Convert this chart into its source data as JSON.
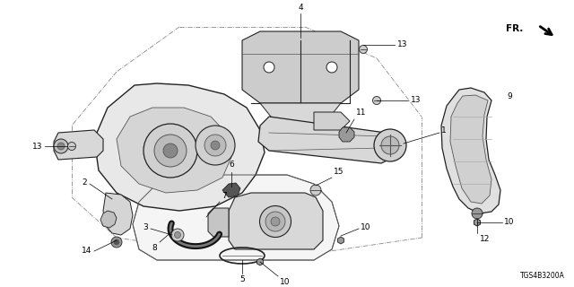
{
  "background_color": "#ffffff",
  "text_color": "#000000",
  "diagram_code": "TGS4B3200A",
  "fr_label": "FR.",
  "line_color": "#222222",
  "light_gray": "#cccccc",
  "mid_gray": "#999999",
  "dark_gray": "#555555",
  "font_size_label": 6.5,
  "font_size_code": 5.5,
  "font_size_fr": 7.5
}
